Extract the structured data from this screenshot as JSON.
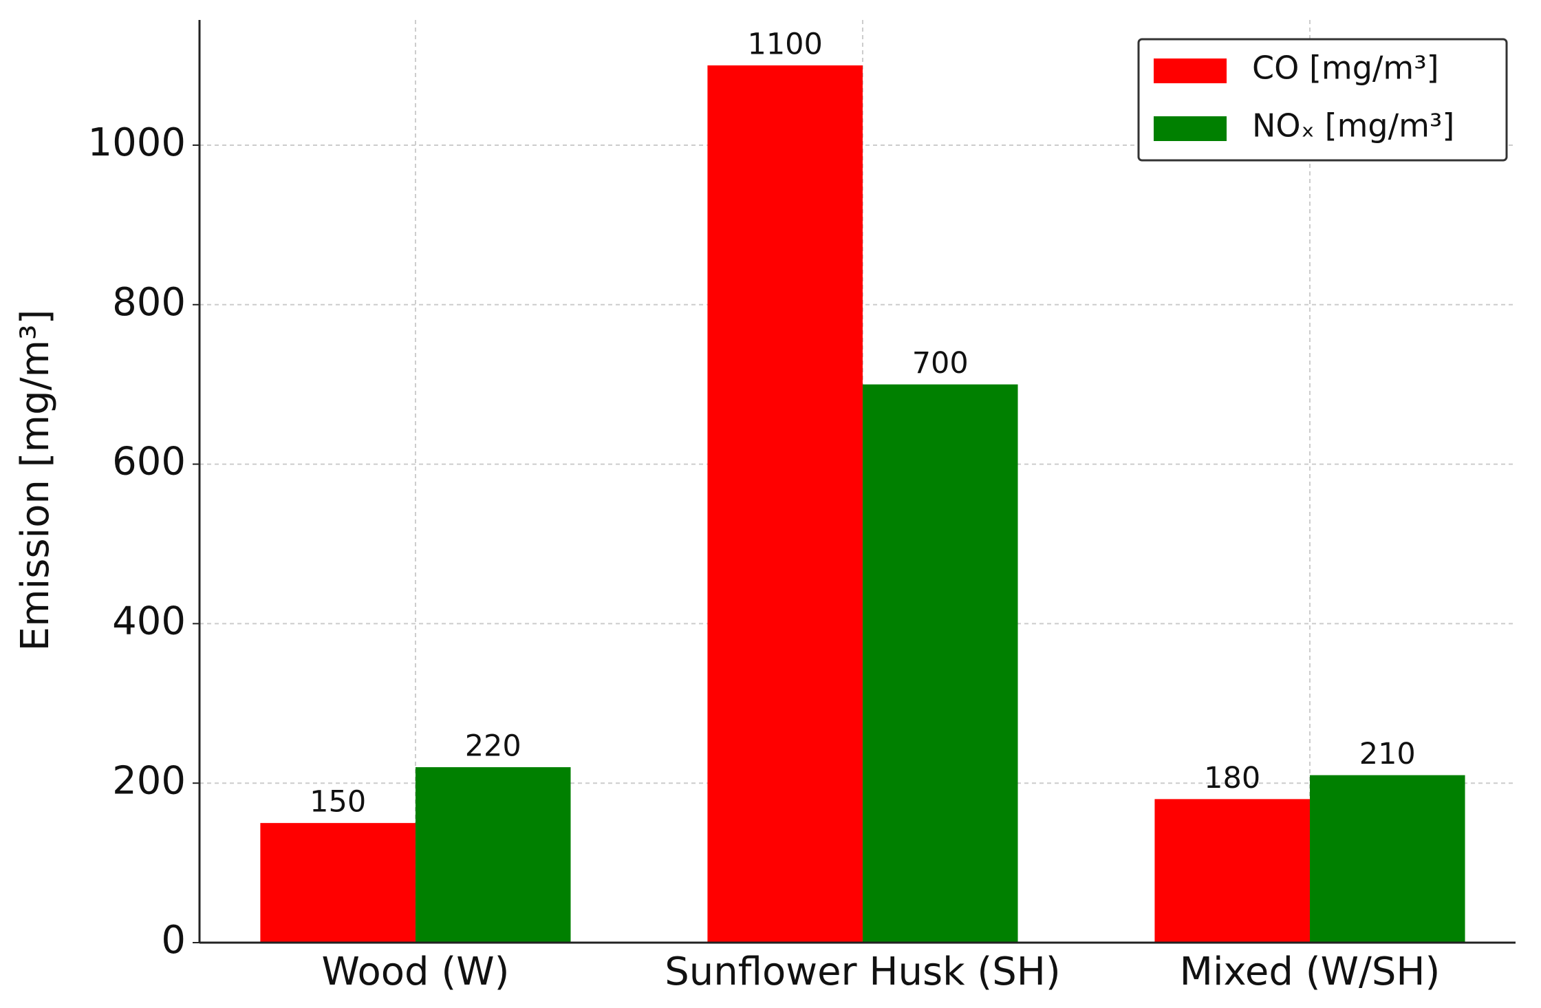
{
  "chart_data": {
    "type": "bar",
    "y_label": "Emission [mg/m³]",
    "categories": [
      "Wood (W)",
      "Sunflower Husk (SH)",
      "Mixed (W/SH)"
    ],
    "series": [
      {
        "name": "CO [mg/m³]",
        "color": "#ff0000",
        "values": [
          150,
          1100,
          180
        ]
      },
      {
        "name": "NOₓ [mg/m³]",
        "color": "#008000",
        "values": [
          220,
          700,
          210
        ]
      }
    ],
    "ylim": [
      0,
      1157
    ],
    "yticks": [
      0,
      200,
      400,
      600,
      800,
      1000
    ],
    "grid": true,
    "legend": "upper right"
  }
}
